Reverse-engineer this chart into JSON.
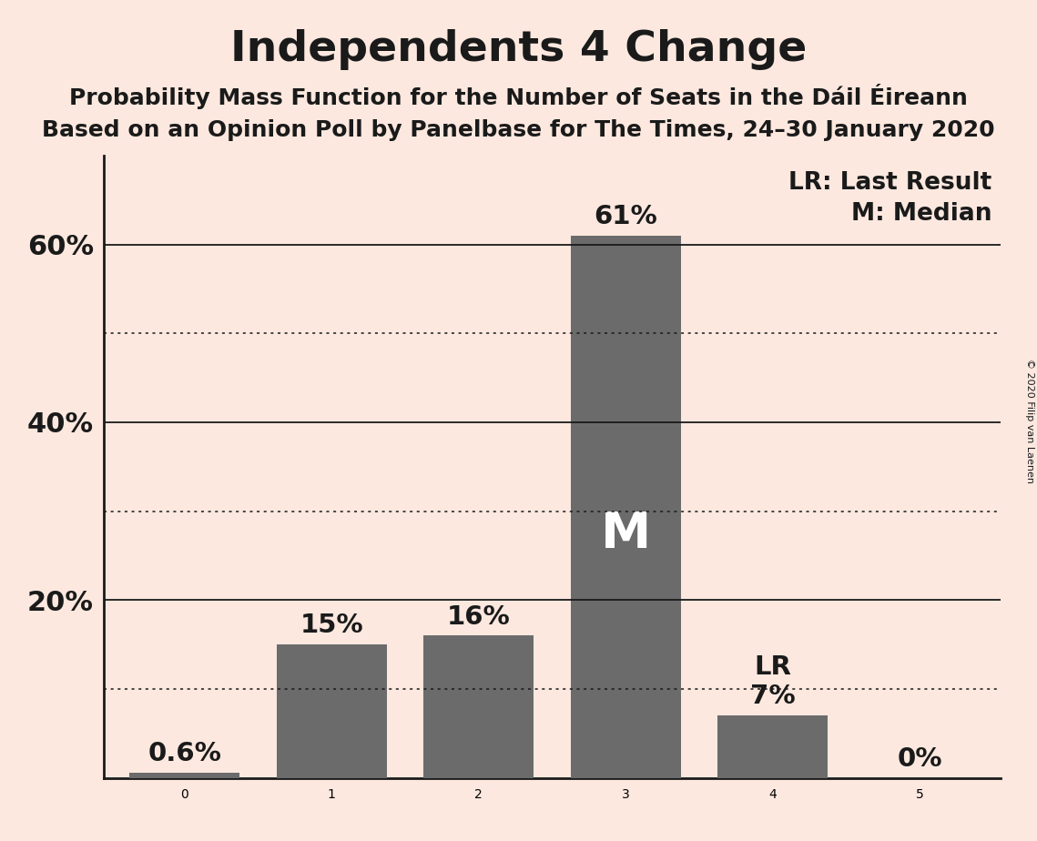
{
  "title": "Independents 4 Change",
  "subtitle1": "Probability Mass Function for the Number of Seats in the Dáil Éireann",
  "subtitle2": "Based on an Opinion Poll by Panelbase for The Times, 24–30 January 2020",
  "copyright": "© 2020 Filip van Laenen",
  "categories": [
    0,
    1,
    2,
    3,
    4,
    5
  ],
  "values": [
    0.006,
    0.15,
    0.16,
    0.61,
    0.07,
    0.0
  ],
  "bar_labels": [
    "0.6%",
    "15%",
    "16%",
    "61%",
    "7%",
    "0%"
  ],
  "bar_color": "#6b6b6b",
  "background_color": "#fce8df",
  "title_fontsize": 34,
  "subtitle_fontsize": 18,
  "tick_label_fontsize": 22,
  "bar_label_fontsize": 21,
  "legend_fontsize": 19,
  "yticks": [
    0.0,
    0.2,
    0.4,
    0.6
  ],
  "ytick_labels": [
    "",
    "20%",
    "40%",
    "60%"
  ],
  "ylim": [
    0,
    0.7
  ],
  "solid_gridlines": [
    0.2,
    0.4,
    0.6
  ],
  "dotted_gridlines": [
    0.1,
    0.3,
    0.5
  ],
  "median_bar": 3,
  "lr_bar": 4,
  "median_label": "M",
  "lr_label": "LR",
  "legend_lr": "LR: Last Result",
  "legend_m": "M: Median",
  "axis_color": "#1a1a1a",
  "text_color": "#1a1a1a"
}
